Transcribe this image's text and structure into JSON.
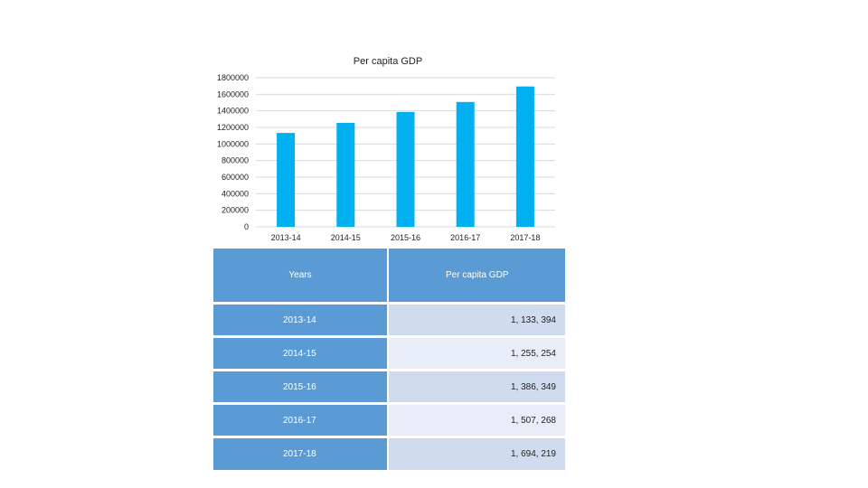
{
  "chart_data": {
    "type": "bar",
    "title": "Per capita GDP",
    "categories": [
      "2013-14",
      "2014-15",
      "2015-16",
      "2016-17",
      "2017-18"
    ],
    "values": [
      1133394,
      1255254,
      1386349,
      1507268,
      1694219
    ],
    "ylim": [
      0,
      1800000
    ],
    "yticks": [
      "0",
      "200000",
      "400000",
      "600000",
      "800000",
      "1000000",
      "1200000",
      "1400000",
      "1600000",
      "1800000"
    ],
    "grid": true,
    "legend": "none",
    "bar_color": "#00b0f0",
    "xlabel": "",
    "ylabel": ""
  },
  "table": {
    "headers": [
      "Years",
      "Per capita GDP"
    ],
    "rows": [
      {
        "year": "2013-14",
        "value": "1, 133, 394"
      },
      {
        "year": "2014-15",
        "value": "1, 255, 254"
      },
      {
        "year": "2015-16",
        "value": "1, 386, 349"
      },
      {
        "year": "2016-17",
        "value": "1, 507, 268"
      },
      {
        "year": "2017-18",
        "value": "1, 694, 219"
      }
    ],
    "header_color": "#5b9bd5",
    "row_colors": [
      "#cfdcef",
      "#e8eef8"
    ]
  }
}
